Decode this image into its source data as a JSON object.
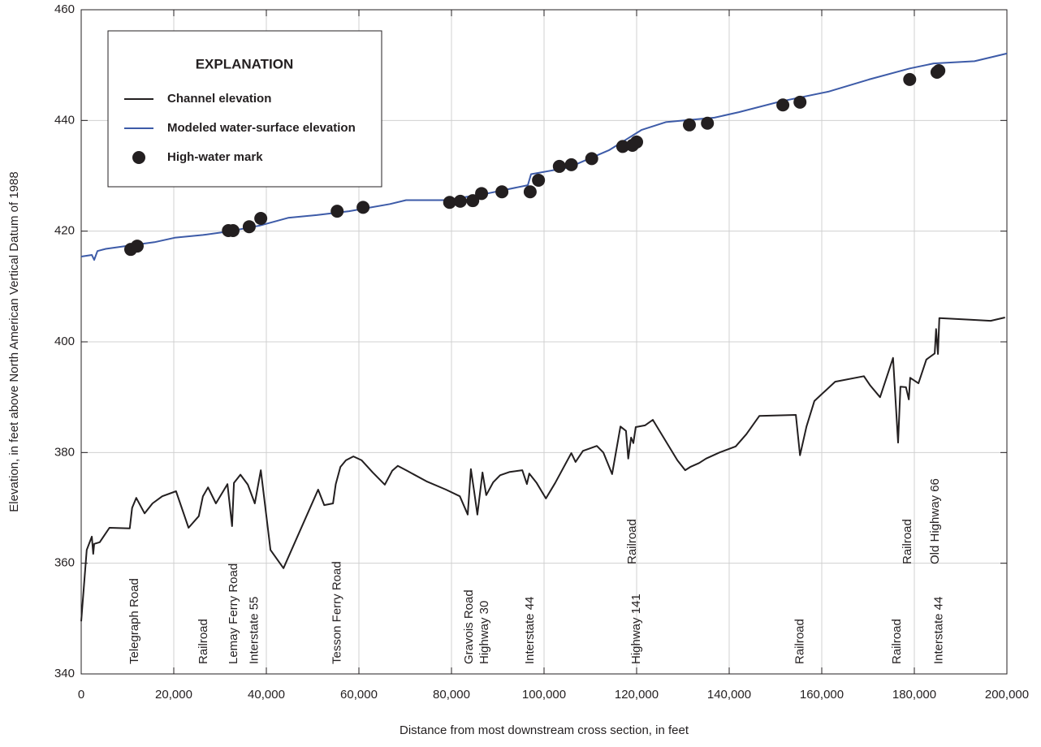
{
  "chart_data": {
    "type": "line",
    "y_label": "Elevation, in feet above North American Vertical Datum of 1988",
    "x_label": "Distance from most downstream cross section, in feet",
    "legend_title": "EXPLANATION",
    "legend": "upper left",
    "grid": true,
    "xlim": [
      0,
      200000
    ],
    "ylim": [
      340,
      460
    ],
    "xticks": [
      0,
      {
        "value": 20000,
        "label": "20,000"
      },
      {
        "value": 40000,
        "label": "40,000"
      },
      {
        "value": 60000,
        "label": "60,000"
      },
      {
        "value": 80000,
        "label": "80,000"
      },
      {
        "value": 100000,
        "label": "100,000"
      },
      {
        "value": 120000,
        "label": "120,000"
      },
      {
        "value": 140000,
        "label": "140,000"
      },
      {
        "value": 160000,
        "label": "160,000"
      },
      {
        "value": 180000,
        "label": "180,000"
      },
      {
        "value": 200000,
        "label": "200,000"
      }
    ],
    "yticks": [
      340,
      360,
      380,
      400,
      420,
      440,
      460
    ],
    "series": [
      {
        "name": "Channel elevation",
        "type": "line",
        "color": "#231f20",
        "x": [
          0,
          1200,
          2300,
          2600,
          2800,
          4000,
          6100,
          10500,
          11000,
          11900,
          13700,
          15400,
          17500,
          20500,
          23200,
          25400,
          26300,
          27400,
          29100,
          31600,
          32600,
          33000,
          34400,
          36000,
          37500,
          38800,
          40900,
          43700,
          51200,
          52500,
          54400,
          55000,
          56000,
          57200,
          58800,
          60600,
          63000,
          65600,
          67200,
          68400,
          70400,
          74600,
          78800,
          81800,
          83500,
          84200,
          84900,
          85600,
          86700,
          87500,
          89000,
          90500,
          92600,
          95300,
          96300,
          96800,
          98400,
          100400,
          102400,
          105900,
          106800,
          108400,
          111400,
          112800,
          114700,
          116500,
          117700,
          118200,
          118800,
          119300,
          119800,
          121800,
          123500,
          128800,
          130500,
          131600,
          133500,
          135000,
          137900,
          141400,
          143700,
          146500,
          154400,
          155300,
          156700,
          158400,
          162900,
          169100,
          170500,
          172600,
          175400,
          176500,
          177000,
          178200,
          178800,
          179100,
          180900,
          182600,
          184400,
          184700,
          185100,
          185400,
          192100,
          196500,
          199600
        ],
        "values": [
          349.5,
          362.4,
          364.8,
          361.7,
          363.5,
          363.8,
          366.4,
          366.3,
          370,
          371.8,
          369,
          370.8,
          372.1,
          373,
          366.4,
          368.5,
          372.1,
          373.7,
          370.8,
          374.3,
          366.7,
          374.5,
          376,
          374.2,
          370.8,
          376.8,
          362.4,
          359.1,
          373.3,
          370.5,
          370.8,
          374.3,
          377.4,
          378.6,
          379.3,
          378.6,
          376.4,
          374.2,
          376.7,
          377.6,
          376.7,
          374.8,
          373.3,
          372.1,
          368.8,
          377,
          373,
          368.8,
          376.4,
          372.3,
          374.6,
          375.9,
          376.5,
          376.8,
          374.3,
          376.2,
          374.5,
          371.7,
          374.5,
          379.9,
          378.3,
          380.3,
          381.2,
          380,
          376.1,
          384.7,
          383.9,
          378.9,
          382.7,
          381.7,
          384.6,
          384.9,
          385.9,
          378.6,
          376.8,
          377.4,
          378.1,
          378.9,
          380,
          381.1,
          383.3,
          386.6,
          386.8,
          379.5,
          384.7,
          389.3,
          392.8,
          393.8,
          392.1,
          390,
          397.1,
          381.8,
          391.9,
          391.8,
          389.6,
          393.5,
          392.5,
          396.8,
          397.9,
          402.3,
          397.8,
          404.3,
          404,
          403.8,
          404.4
        ]
      },
      {
        "name": "Modeled water-surface elevation",
        "type": "line",
        "color": "#3d5ba8",
        "x": [
          0,
          2300,
          2800,
          3500,
          5300,
          10500,
          15800,
          20200,
          26300,
          31600,
          38600,
          44700,
          50900,
          57900,
          66700,
          70200,
          78900,
          87700,
          96500,
          97200,
          105300,
          114000,
          121100,
          126300,
          136800,
          142100,
          150900,
          161400,
          170200,
          179000,
          184200,
          193000,
          200000
        ],
        "values": [
          415.4,
          415.7,
          414.8,
          416.4,
          416.8,
          417.4,
          418,
          418.8,
          419.3,
          419.9,
          421,
          422.4,
          422.9,
          423.6,
          424.9,
          425.6,
          425.6,
          426.8,
          428.3,
          430.3,
          431.5,
          434.6,
          438.3,
          439.7,
          440.5,
          441.5,
          443.4,
          445.2,
          447.4,
          449.4,
          450.3,
          450.7,
          452.1
        ]
      },
      {
        "name": "High-water mark",
        "type": "scatter",
        "color": "#231f20",
        "x": [
          10700,
          12100,
          31800,
          32800,
          36300,
          38800,
          55300,
          60900,
          79600,
          81900,
          84600,
          86500,
          90900,
          97000,
          98800,
          103300,
          105900,
          110300,
          117000,
          119100,
          120000,
          131400,
          135300,
          151600,
          155300,
          179000,
          184900,
          185300
        ],
        "values": [
          416.7,
          417.3,
          420.1,
          420.1,
          420.8,
          422.3,
          423.6,
          424.3,
          425.2,
          425.4,
          425.5,
          426.8,
          427.1,
          427.1,
          429.2,
          431.7,
          432,
          433.1,
          435.3,
          435.5,
          436.1,
          439.2,
          439.5,
          442.8,
          443.3,
          447.4,
          448.7,
          449
        ]
      }
    ],
    "annotations": [
      {
        "text": "Telegraph Road",
        "x": 11600
      },
      {
        "text": "Railroad",
        "x": 26500
      },
      {
        "text": "Lemay Ferry Road",
        "x": 33000
      },
      {
        "text": "Interstate 55",
        "x": 37500
      },
      {
        "text": "Tesson Ferry Road",
        "x": 55400
      },
      {
        "text": "Gravois Road",
        "x": 83900
      },
      {
        "text": "Highway 30",
        "x": 87200
      },
      {
        "text": "Interstate 44",
        "x": 97000
      },
      {
        "text": "Railroad",
        "x": 119100
      },
      {
        "text": "Highway 141",
        "x": 120000
      },
      {
        "text": "Railroad",
        "x": 155400
      },
      {
        "text": "Railroad",
        "x": 176300
      },
      {
        "text": "Railroad",
        "x": 178600
      },
      {
        "text": "Old Highway 66",
        "x": 184600
      },
      {
        "text": "Interstate 44",
        "x": 185400
      }
    ]
  }
}
